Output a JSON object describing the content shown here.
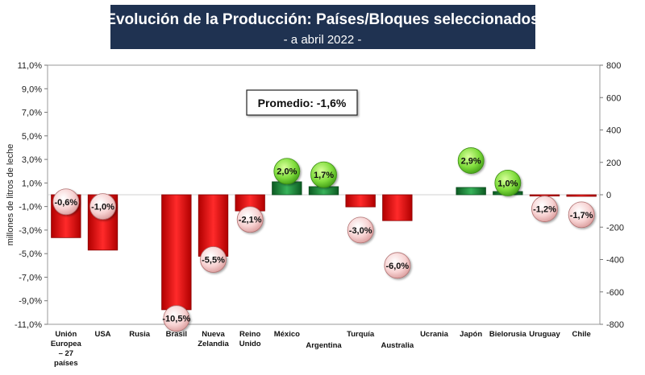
{
  "chart_data": {
    "type": "bar",
    "title": "Evolución de la Producción: Países/Bloques seleccionados",
    "subtitle": "- a abril 2022 -",
    "ylabel": "millones de litros de leche",
    "annotation": "Promedio: -1,6%",
    "categories": [
      [
        "Unión",
        "Europea",
        "– 27",
        "países"
      ],
      [
        "USA"
      ],
      [
        "Rusia"
      ],
      [
        "Brasil"
      ],
      [
        "Nueva",
        "Zelandia"
      ],
      [
        "Reino",
        "Unido"
      ],
      [
        "México"
      ],
      [
        "Argentina"
      ],
      [
        "Turquía"
      ],
      [
        "Australia"
      ],
      [
        "Ucrania"
      ],
      [
        "Japón"
      ],
      [
        "Bielorusia"
      ],
      [
        "Uruguay"
      ],
      [
        "Chile"
      ]
    ],
    "series": [
      {
        "axis": "right",
        "values": [
          -265,
          -342,
          0,
          -710,
          -380,
          -100,
          80,
          50,
          -75,
          -160,
          0,
          45,
          20,
          -8,
          -10
        ]
      },
      {
        "axis": "left",
        "labels": [
          "-0,6%",
          "-1,0%",
          "",
          "-10,5%",
          "-5,5%",
          "-2,1%",
          "2,0%",
          "1,7%",
          "-3,0%",
          "-6,0%",
          "",
          "2,9%",
          "1,0%",
          "-1,2%",
          "-1,7%"
        ],
        "values": [
          -0.6,
          -1.0,
          null,
          -10.5,
          -5.5,
          -2.1,
          2.0,
          1.7,
          -3.0,
          -6.0,
          null,
          2.9,
          1.0,
          -1.2,
          -1.7
        ]
      }
    ],
    "left_axis": {
      "ylim": [
        -11,
        11
      ],
      "ticks": [
        "11,0%",
        "9,0%",
        "7,0%",
        "5,0%",
        "3,0%",
        "1,0%",
        "-1,0%",
        "-3,0%",
        "-5,0%",
        "-7,0%",
        "-9,0%",
        "-11,0%"
      ],
      "tick_values": [
        11,
        9,
        7,
        5,
        3,
        1,
        -1,
        -3,
        -5,
        -7,
        -9,
        -11
      ]
    },
    "right_axis": {
      "ylim": [
        -800,
        800
      ],
      "ticks": [
        "800",
        "600",
        "400",
        "200",
        "0",
        "-200",
        "-400",
        "-600",
        "-800"
      ],
      "tick_values": [
        800,
        600,
        400,
        200,
        0,
        -200,
        -400,
        -600,
        -800
      ]
    },
    "colors": {
      "negative": "#ee1111",
      "positive": "#1f8f3a",
      "bubble_negative": "#f6c9c9",
      "bubble_positive": "#7fdc3c",
      "title_bg": "#1f3251"
    },
    "grid": false
  }
}
